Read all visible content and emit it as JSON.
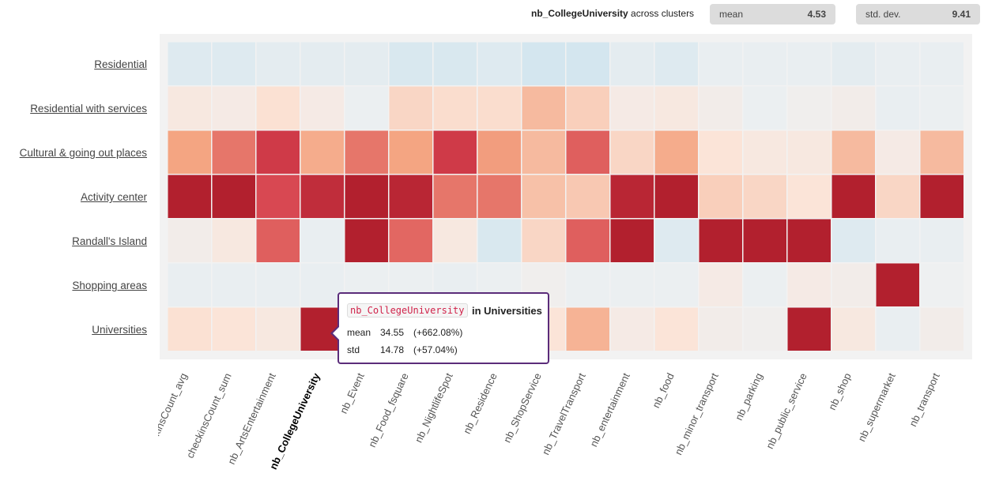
{
  "header": {
    "variable": "nb_CollegeUniversity",
    "suffix": " across clusters",
    "mean_label": "mean",
    "mean_value": "4.53",
    "std_label": "std. dev.",
    "std_value": "9.41"
  },
  "tooltip": {
    "variable": "nb_CollegeUniversity",
    "in_label": "in Universities",
    "mean_label": "mean",
    "mean_value": "34.55",
    "mean_delta": "(+662.08%)",
    "std_label": "std",
    "std_value": "14.78",
    "std_delta": "(+57.04%)",
    "border_color": "#5b2c7a"
  },
  "chart_data": {
    "type": "heatmap",
    "highlighted_column": "nb_CollegeUniversity",
    "rows": [
      "Residential",
      "Residential with services",
      "Cultural & going out places",
      "Activity center",
      "Randall's Island",
      "Shopping areas",
      "Universities"
    ],
    "columns": [
      "checkinsCount_avg",
      "checkinsCount_sum",
      "nb_ArtsEntertainment",
      "nb_CollegeUniversity",
      "nb_Event",
      "nb_Food_fsquare",
      "nb_NightlifeSpot",
      "nb_Residence",
      "nb_ShopService",
      "nb_TravelTransport",
      "nb_entertainment",
      "nb_food",
      "nb_minor_transport",
      "nb_parking",
      "nb_public_service",
      "nb_shop",
      "nb_supermarket",
      "nb_transport"
    ],
    "values_relative": [
      [
        -0.3,
        -0.3,
        -0.2,
        -0.2,
        -0.2,
        -0.4,
        -0.4,
        -0.3,
        -0.5,
        -0.5,
        -0.2,
        -0.3,
        -0.1,
        -0.1,
        -0.1,
        -0.2,
        -0.1,
        -0.1
      ],
      [
        0.2,
        0.15,
        0.35,
        0.15,
        -0.05,
        0.5,
        0.4,
        0.4,
        0.9,
        0.6,
        0.15,
        0.2,
        0.1,
        -0.05,
        0.05,
        0.1,
        -0.1,
        -0.05
      ],
      [
        1.2,
        1.8,
        2.6,
        1.1,
        1.8,
        1.2,
        2.6,
        1.3,
        0.9,
        2.1,
        0.5,
        1.1,
        0.3,
        0.2,
        0.2,
        0.9,
        0.15,
        0.9
      ],
      [
        3,
        3,
        2.4,
        2.8,
        3,
        2.9,
        1.8,
        1.8,
        0.8,
        0.7,
        2.9,
        3,
        0.6,
        0.5,
        0.3,
        3,
        0.5,
        3
      ],
      [
        0.1,
        0.2,
        2.1,
        -0.1,
        3,
        2,
        0.2,
        -0.4,
        0.5,
        2.1,
        3,
        -0.3,
        3,
        3,
        3,
        -0.3,
        -0.1,
        -0.1
      ],
      [
        -0.1,
        -0.1,
        -0.1,
        -0.1,
        -0.05,
        -0.05,
        -0.1,
        -0.05,
        0.05,
        -0.05,
        -0.05,
        -0.05,
        0.15,
        -0.05,
        0.15,
        0.1,
        3,
        0
      ],
      [
        0.35,
        0.3,
        0.2,
        3,
        0.2,
        0.2,
        0.2,
        0.2,
        0.3,
        1.0,
        0.15,
        0.3,
        0.1,
        0.05,
        3,
        0.2,
        -0.1,
        0.1
      ]
    ],
    "color_scale": {
      "negative": "#d4e6ef",
      "neutral": "#eef0f1",
      "low": "#fbe4d8",
      "mid": "#f4a582",
      "high": "#d6404e",
      "max": "#b2202e"
    }
  }
}
